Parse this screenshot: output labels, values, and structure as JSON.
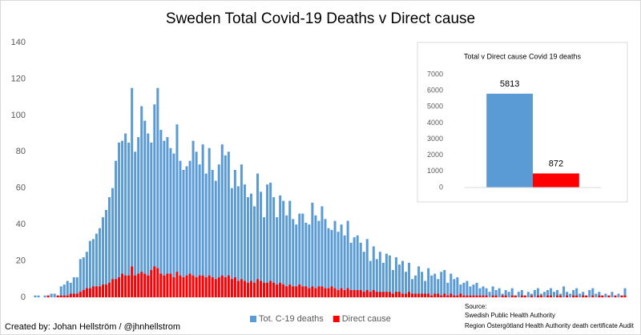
{
  "chart_data": [
    {
      "type": "bar",
      "title": "Sweden Total Covid-19 Deaths v Direct cause",
      "categories": [
        null,
        null,
        null,
        null,
        null,
        null,
        null,
        null,
        null,
        null,
        null,
        null,
        null,
        null,
        null,
        null,
        null,
        null,
        null,
        null,
        null,
        null,
        null,
        null,
        null,
        null,
        null,
        null,
        null,
        null,
        null,
        null,
        null,
        null,
        null,
        null,
        null,
        null,
        null,
        null,
        null,
        null,
        null,
        null,
        null,
        null,
        null,
        null,
        null,
        null,
        null,
        null,
        null,
        null,
        null,
        null,
        null,
        null,
        null,
        null,
        null,
        null,
        null,
        null,
        null,
        null,
        null,
        null,
        null,
        null,
        null,
        null,
        null,
        null,
        null,
        null,
        null,
        null,
        null,
        null,
        null,
        null,
        null,
        null,
        null,
        null,
        null,
        null,
        null,
        null,
        null,
        null,
        null,
        null,
        null,
        null,
        null,
        null,
        null,
        null,
        null,
        null,
        null,
        null,
        null,
        null,
        null,
        null,
        null,
        null,
        null,
        null,
        null,
        null,
        null,
        null,
        null,
        null,
        null,
        null,
        null,
        null,
        null,
        null,
        null,
        null,
        null,
        null,
        null,
        null,
        null,
        null,
        null,
        null,
        null,
        null,
        null,
        null,
        null,
        null,
        null,
        null,
        null,
        null,
        null,
        null,
        null,
        null,
        null,
        null,
        null,
        null,
        null,
        null,
        null,
        null,
        null,
        null,
        null,
        null,
        null,
        null,
        null,
        null,
        null,
        null,
        null,
        null,
        null,
        null,
        null,
        null,
        null,
        null,
        null,
        null,
        null,
        null,
        null,
        null,
        null,
        null,
        null,
        null
      ],
      "series": [
        {
          "name": "Tot. C-19 deaths",
          "color": "#5b9bd5",
          "values": [
            1,
            1,
            0,
            1,
            1,
            2,
            2,
            1,
            6,
            7,
            9,
            8,
            11,
            11,
            21,
            22,
            25,
            31,
            32,
            35,
            38,
            44,
            48,
            55,
            60,
            75,
            85,
            86,
            90,
            85,
            115,
            80,
            88,
            105,
            97,
            90,
            85,
            106,
            115,
            92,
            86,
            88,
            82,
            79,
            95,
            75,
            70,
            72,
            75,
            86,
            80,
            73,
            84,
            68,
            82,
            70,
            64,
            73,
            84,
            78,
            80,
            60,
            70,
            61,
            73,
            62,
            55,
            57,
            50,
            68,
            58,
            44,
            62,
            63,
            55,
            44,
            56,
            53,
            45,
            53,
            43,
            40,
            46,
            46,
            41,
            40,
            52,
            45,
            42,
            50,
            43,
            38,
            37,
            42,
            36,
            40,
            34,
            42,
            30,
            33,
            34,
            30,
            25,
            32,
            20,
            28,
            21,
            25,
            19,
            24,
            23,
            15,
            22,
            18,
            20,
            14,
            19,
            10,
            12,
            17,
            14,
            9,
            16,
            12,
            13,
            10,
            14,
            15,
            8,
            13,
            10,
            11,
            7,
            8,
            9,
            6,
            7,
            8,
            5,
            6,
            5,
            3,
            6,
            4,
            5,
            2,
            4,
            3,
            5,
            1,
            3,
            4,
            1,
            3,
            2,
            4,
            5,
            2,
            3,
            4,
            5,
            3,
            4,
            2,
            6,
            3,
            2,
            4,
            5,
            2,
            3,
            1,
            4,
            5,
            2,
            3,
            1,
            2,
            1,
            3,
            1,
            2,
            1,
            5
          ]
        },
        {
          "name": "Direct cause",
          "color": "#ff0000",
          "values": [
            0,
            0,
            0,
            0,
            1,
            0,
            0,
            1,
            1,
            1,
            1,
            2,
            2,
            2,
            3,
            4,
            5,
            5,
            6,
            6,
            6,
            7,
            7,
            8,
            10,
            10,
            11,
            13,
            12,
            12,
            17,
            12,
            13,
            14,
            13,
            12,
            15,
            17,
            16,
            13,
            12,
            13,
            13,
            11,
            14,
            12,
            11,
            12,
            13,
            12,
            11,
            12,
            12,
            11,
            12,
            11,
            10,
            11,
            12,
            11,
            12,
            10,
            11,
            9,
            10,
            9,
            8,
            9,
            8,
            10,
            9,
            8,
            8,
            9,
            8,
            7,
            8,
            7,
            6,
            7,
            6,
            6,
            7,
            6,
            6,
            5,
            6,
            5,
            6,
            6,
            5,
            5,
            6,
            5,
            4,
            5,
            4,
            5,
            4,
            4,
            4,
            4,
            3,
            4,
            3,
            4,
            3,
            3,
            3,
            3,
            3,
            2,
            3,
            3,
            2,
            2,
            3,
            2,
            2,
            2,
            2,
            2,
            2,
            1,
            2,
            2,
            1,
            2,
            1,
            2,
            1,
            1,
            2,
            1,
            1,
            1,
            1,
            1,
            1,
            1,
            1,
            0,
            1,
            1,
            0,
            1,
            1,
            0,
            1,
            1,
            0,
            1,
            1,
            0,
            1,
            0,
            1,
            1,
            0,
            1,
            1,
            0,
            1,
            1,
            0,
            1,
            0,
            1,
            1,
            0,
            1,
            1,
            0,
            1,
            0,
            1,
            1,
            0,
            1,
            0,
            1,
            0,
            1,
            1
          ]
        }
      ],
      "ylim": [
        0,
        140
      ],
      "yticks": [
        0,
        20,
        40,
        60,
        80,
        100,
        120,
        140
      ],
      "grid": false,
      "legend": "bottom",
      "credit": "Created by: Johan Hellström / @jhnhellstrom",
      "source": [
        "Source:",
        "Swedish Public Health Authority",
        "Region Östergötland Health Authority death certificate Audit"
      ]
    },
    {
      "type": "bar",
      "title": "Total v Direct cause Covid 19 deaths",
      "categories": [
        null,
        null
      ],
      "values": [
        5813,
        872
      ],
      "colors": [
        "#5b9bd5",
        "#ff0000"
      ],
      "ylim": [
        0,
        7000
      ],
      "yticks": [
        0,
        1000,
        2000,
        3000,
        4000,
        5000,
        6000,
        7000
      ],
      "grid": false
    }
  ]
}
